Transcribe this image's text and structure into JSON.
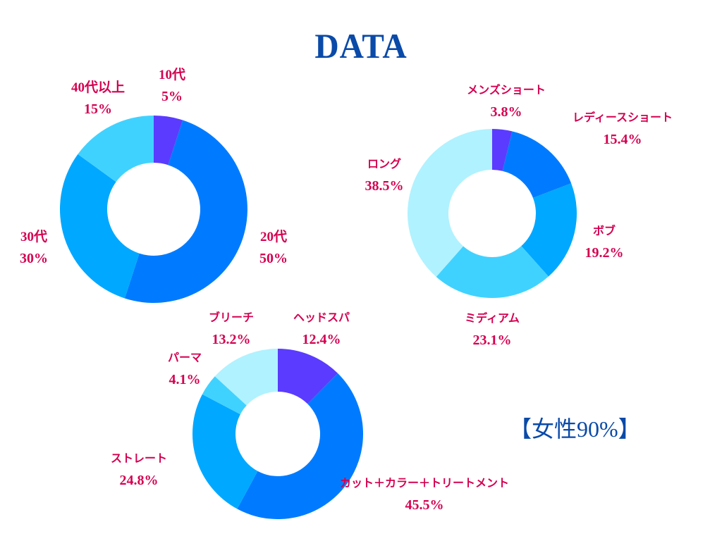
{
  "title": "DATA",
  "note": "【女性90%】",
  "colors": {
    "label": "#d4004f",
    "title": "#0a4aa8"
  },
  "chart_data": [
    {
      "type": "pie",
      "donut": true,
      "slices": [
        {
          "label": "10代",
          "value": 5,
          "display": "5%",
          "color": "#5b3bff"
        },
        {
          "label": "20代",
          "value": 50,
          "display": "50%",
          "color": "#007bff"
        },
        {
          "label": "30代",
          "value": 30,
          "display": "30%",
          "color": "#00a8ff"
        },
        {
          "label": "40代以上",
          "value": 15,
          "display": "15%",
          "color": "#40d2ff"
        }
      ]
    },
    {
      "type": "pie",
      "donut": true,
      "slices": [
        {
          "label": "メンズショート",
          "value": 3.8,
          "display": "3.8%",
          "color": "#5b3bff"
        },
        {
          "label": "レディースショート",
          "value": 15.4,
          "display": "15.4%",
          "color": "#007bff"
        },
        {
          "label": "ボブ",
          "value": 19.2,
          "display": "19.2%",
          "color": "#00a8ff"
        },
        {
          "label": "ミディアム",
          "value": 23.1,
          "display": "23.1%",
          "color": "#40d2ff"
        },
        {
          "label": "ロング",
          "value": 38.5,
          "display": "38.5%",
          "color": "#b0f2ff"
        }
      ]
    },
    {
      "type": "pie",
      "donut": true,
      "slices": [
        {
          "label": "ヘッドスパ",
          "value": 12.4,
          "display": "12.4%",
          "color": "#5b3bff"
        },
        {
          "label": "カット＋カラー＋トリートメント",
          "value": 45.5,
          "display": "45.5%",
          "color": "#007bff"
        },
        {
          "label": "ストレート",
          "value": 24.8,
          "display": "24.8%",
          "color": "#00a8ff"
        },
        {
          "label": "パーマ",
          "value": 4.1,
          "display": "4.1%",
          "color": "#40d2ff"
        },
        {
          "label": "ブリーチ",
          "value": 13.2,
          "display": "13.2%",
          "color": "#b0f2ff"
        }
      ]
    }
  ]
}
